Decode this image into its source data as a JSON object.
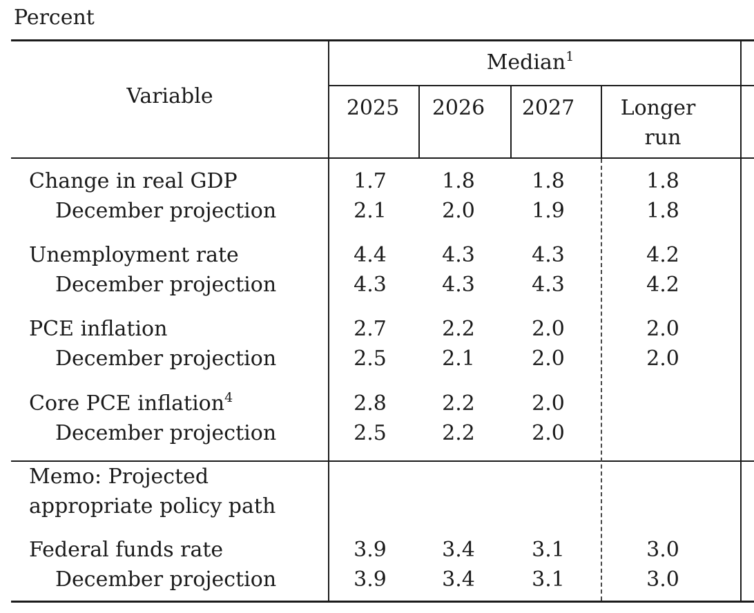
{
  "unit_label": "Percent",
  "header": {
    "variable": "Variable",
    "median_label": "Median",
    "median_sup": "1",
    "years": [
      "2025",
      "2026",
      "2027"
    ],
    "longer_run_line1": "Longer",
    "longer_run_line2": "run"
  },
  "rows": [
    {
      "label": "Change in real GDP",
      "sup": "",
      "values": [
        "1.7",
        "1.8",
        "1.8",
        "1.8"
      ]
    },
    {
      "label": "December projection",
      "sup": "",
      "values": [
        "2.1",
        "2.0",
        "1.9",
        "1.8"
      ]
    },
    {
      "label": "Unemployment rate",
      "sup": "",
      "values": [
        "4.4",
        "4.3",
        "4.3",
        "4.2"
      ]
    },
    {
      "label": "December projection",
      "sup": "",
      "values": [
        "4.3",
        "4.3",
        "4.3",
        "4.2"
      ]
    },
    {
      "label": "PCE inflation",
      "sup": "",
      "values": [
        "2.7",
        "2.2",
        "2.0",
        "2.0"
      ]
    },
    {
      "label": "December projection",
      "sup": "",
      "values": [
        "2.5",
        "2.1",
        "2.0",
        "2.0"
      ]
    },
    {
      "label": "Core PCE inflation",
      "sup": "4",
      "values": [
        "2.8",
        "2.2",
        "2.0",
        ""
      ]
    },
    {
      "label": "December projection",
      "sup": "",
      "values": [
        "2.5",
        "2.2",
        "2.0",
        ""
      ]
    }
  ],
  "memo": {
    "line1": "Memo: Projected",
    "line2": "appropriate policy path"
  },
  "memo_rows": [
    {
      "label": "Federal funds rate",
      "values": [
        "3.9",
        "3.4",
        "3.1",
        "3.0"
      ]
    },
    {
      "label": "December projection",
      "values": [
        "3.9",
        "3.4",
        "3.1",
        "3.0"
      ]
    }
  ]
}
